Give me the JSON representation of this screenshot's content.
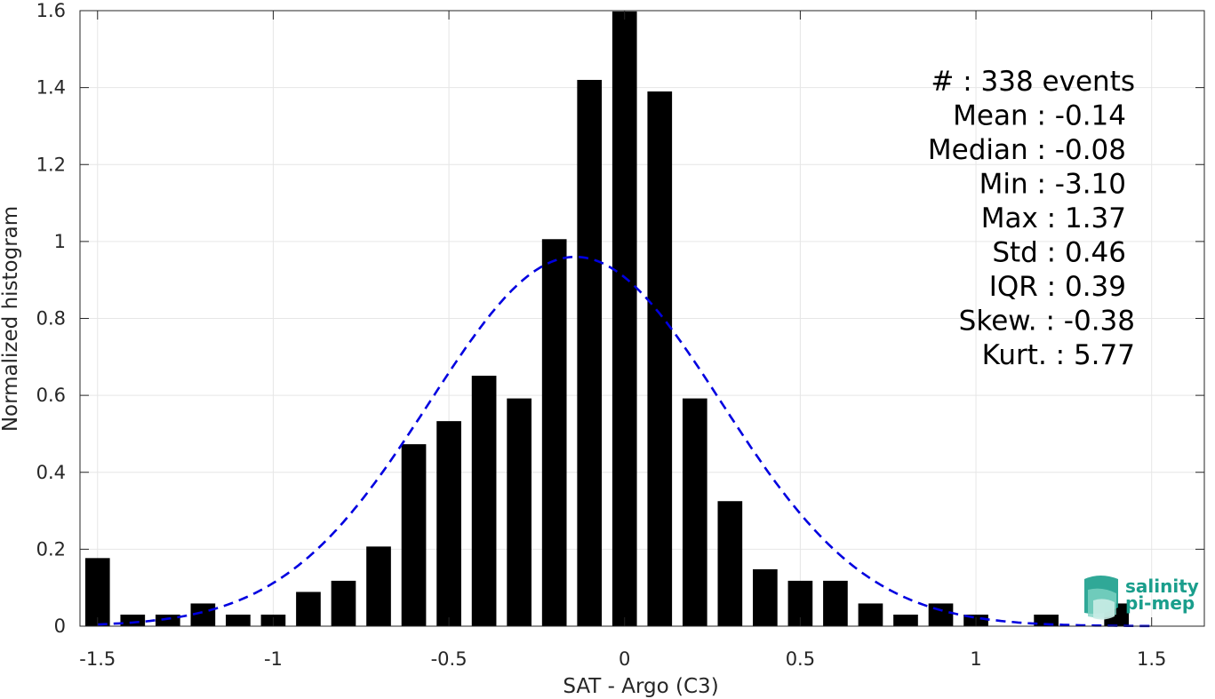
{
  "chart_data": {
    "type": "bar",
    "xlabel": "SAT - Argo (C3)",
    "ylabel": "Normalized histogram",
    "xlim": [
      -1.55,
      1.65
    ],
    "ylim": [
      0,
      1.6
    ],
    "grid": true,
    "x_ticks": [
      -1.5,
      -1,
      -0.5,
      0,
      0.5,
      1,
      1.5
    ],
    "x_tick_labels": [
      "-1.5",
      "-1",
      "-0.5",
      "0",
      "0.5",
      "1",
      "1.5"
    ],
    "y_ticks": [
      0,
      0.2,
      0.4,
      0.6,
      0.8,
      1,
      1.2,
      1.4,
      1.6
    ],
    "y_tick_labels": [
      "0",
      "0.2",
      "0.4",
      "0.6",
      "0.8",
      "1",
      "1.2",
      "1.4",
      "1.6"
    ],
    "bar_color": "#000000",
    "bins": [
      -1.5,
      -1.4,
      -1.3,
      -1.2,
      -1.1,
      -1.0,
      -0.9,
      -0.8,
      -0.7,
      -0.6,
      -0.5,
      -0.4,
      -0.3,
      -0.2,
      -0.1,
      0.0,
      0.1,
      0.2,
      0.3,
      0.4,
      0.5,
      0.6,
      0.7,
      0.8,
      0.9,
      1.0,
      1.1,
      1.2,
      1.3,
      1.4
    ],
    "values": [
      0.177,
      0.03,
      0.03,
      0.059,
      0.03,
      0.03,
      0.089,
      0.118,
      0.207,
      0.473,
      0.533,
      0.651,
      0.592,
      1.006,
      1.42,
      1.598,
      1.39,
      0.592,
      0.325,
      0.148,
      0.118,
      0.118,
      0.059,
      0.03,
      0.059,
      0.03,
      0.0,
      0.03,
      0.0,
      0.059
    ],
    "fit": {
      "name": "Gaussian fit",
      "color": "#0000e0",
      "style": "dashed",
      "mean": -0.14,
      "std": 0.415,
      "peak": 0.96,
      "x_range": [
        -1.5,
        1.5
      ]
    },
    "stats_lines": [
      "#  : 338 events",
      "Mean : -0.14",
      "Median : -0.08",
      "Min : -3.10",
      "Max : 1.37",
      "Std : 0.46",
      "IQR : 0.39",
      "Skew. : -0.38",
      "Kurt. : 5.77"
    ]
  },
  "logo": {
    "line1": "salinity",
    "line2": "pi-mep",
    "color": "#1a9e8c"
  }
}
